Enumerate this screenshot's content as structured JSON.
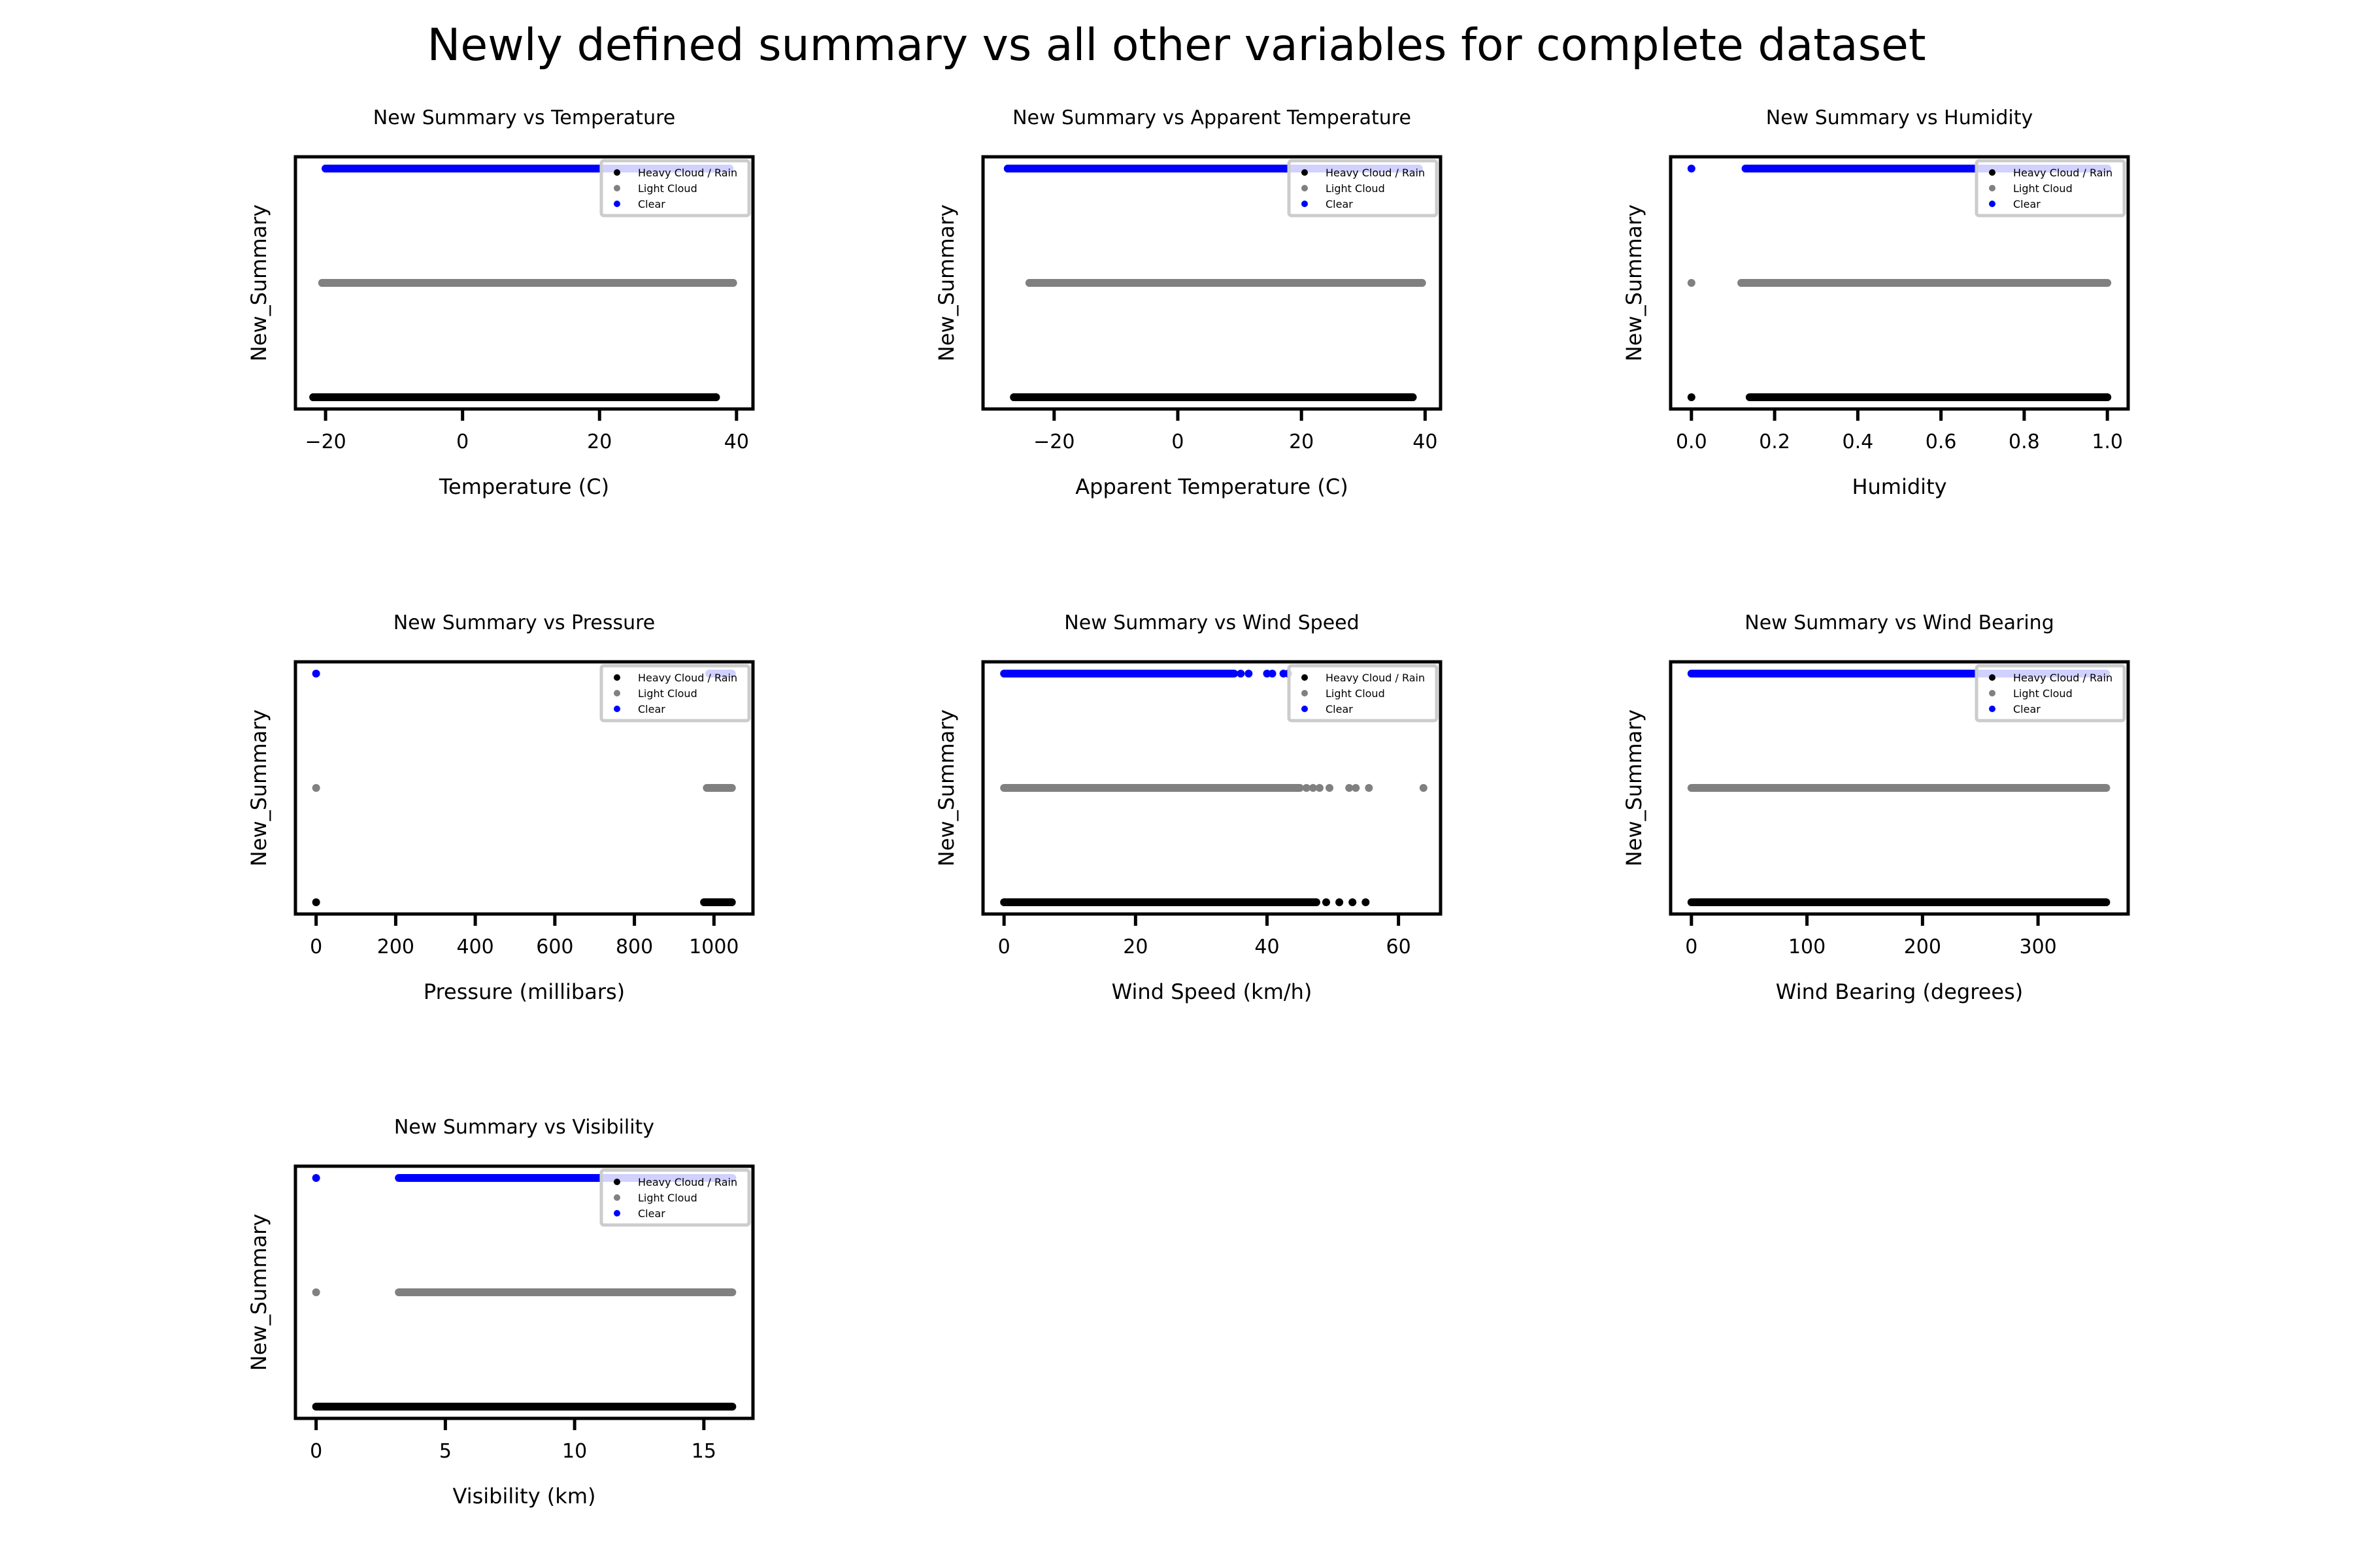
{
  "figure": {
    "title": "Newly defined summary vs all other variables for complete dataset"
  },
  "colors": {
    "heavy": "#000000",
    "light": "#808080",
    "clear": "#0000ff"
  },
  "chart_data": [
    {
      "type": "scatter",
      "title": "New Summary vs Temperature",
      "xlabel": "Temperature (C)",
      "ylabel": "New_Summary",
      "xlim": [
        -24.4,
        42.4
      ],
      "xticks": [
        -20,
        0,
        20,
        40
      ],
      "xtick_labels": [
        "−20",
        "0",
        "20",
        "40"
      ],
      "legend": {
        "placement": "upper right",
        "entries": [
          "Heavy Cloud / Rain",
          "Light Cloud",
          "Clear"
        ]
      },
      "series": [
        {
          "name": "Heavy Cloud / Rain",
          "level": 0,
          "x_min": -21.8,
          "x_max": 37.0,
          "x_points": [
            -21.8,
            -20.0,
            -18.0,
            34.5,
            35.8,
            37.0
          ]
        },
        {
          "name": "Light Cloud",
          "level": 1,
          "x_min": -20.5,
          "x_max": 39.5,
          "x_points": [
            -20.5,
            -18.0,
            -16.5,
            38.0,
            39.5
          ]
        },
        {
          "name": "Clear",
          "level": 2,
          "x_min": -20.0,
          "x_max": 39.0,
          "x_points": [
            -20.0,
            -17.5,
            -16.5
          ]
        }
      ]
    },
    {
      "type": "scatter",
      "title": "New Summary vs Apparent Temperature",
      "xlabel": "Apparent Temperature (C)",
      "ylabel": "New_Summary",
      "xlim": [
        -31.5,
        42.5
      ],
      "xticks": [
        -20,
        0,
        20,
        40
      ],
      "xtick_labels": [
        "−20",
        "0",
        "20",
        "40"
      ],
      "legend": {
        "placement": "upper right",
        "entries": [
          "Heavy Cloud / Rain",
          "Light Cloud",
          "Clear"
        ]
      },
      "series": [
        {
          "name": "Heavy Cloud / Rain",
          "level": 0,
          "x_min": -26.5,
          "x_max": 38.0,
          "x_points": [
            -26.5,
            -25.0,
            36.5,
            38.0
          ]
        },
        {
          "name": "Light Cloud",
          "level": 1,
          "x_min": -24.0,
          "x_max": 39.5,
          "x_points": [
            -24.0,
            -22.5,
            38.0,
            39.5
          ]
        },
        {
          "name": "Clear",
          "level": 2,
          "x_min": -27.5,
          "x_max": 39.0,
          "x_points": [
            -27.5,
            -24.5,
            -23.5,
            -22.5
          ]
        }
      ]
    },
    {
      "type": "scatter",
      "title": "New Summary vs Humidity",
      "xlabel": "Humidity",
      "ylabel": "New_Summary",
      "xlim": [
        -0.05,
        1.05
      ],
      "xticks": [
        0.0,
        0.2,
        0.4,
        0.6,
        0.8,
        1.0
      ],
      "xtick_labels": [
        "0.0",
        "0.2",
        "0.4",
        "0.6",
        "0.8",
        "1.0"
      ],
      "legend": {
        "placement": "upper right",
        "entries": [
          "Heavy Cloud / Rain",
          "Light Cloud",
          "Clear"
        ]
      },
      "series": [
        {
          "name": "Heavy Cloud / Rain",
          "level": 0,
          "x_min": 0.14,
          "x_max": 1.0,
          "x_points": [
            0.0
          ]
        },
        {
          "name": "Light Cloud",
          "level": 1,
          "x_min": 0.12,
          "x_max": 1.0,
          "x_points": [
            0.0,
            0.12
          ]
        },
        {
          "name": "Clear",
          "level": 2,
          "x_min": 0.13,
          "x_max": 1.0,
          "x_points": [
            0.0
          ]
        }
      ]
    },
    {
      "type": "scatter",
      "title": "New Summary vs Pressure",
      "xlabel": "Pressure (millibars)",
      "ylabel": "New_Summary",
      "xlim": [
        -52,
        1098
      ],
      "xticks": [
        0,
        200,
        400,
        600,
        800,
        1000
      ],
      "xtick_labels": [
        "0",
        "200",
        "400",
        "600",
        "800",
        "1000"
      ],
      "legend": {
        "placement": "upper right",
        "entries": [
          "Heavy Cloud / Rain",
          "Light Cloud",
          "Clear"
        ]
      },
      "series": [
        {
          "name": "Heavy Cloud / Rain",
          "level": 0,
          "x_min": 975,
          "x_max": 1045,
          "x_points": [
            0
          ]
        },
        {
          "name": "Light Cloud",
          "level": 1,
          "x_min": 982,
          "x_max": 1045,
          "x_points": [
            0
          ]
        },
        {
          "name": "Clear",
          "level": 2,
          "x_min": 988,
          "x_max": 1045,
          "x_points": [
            0
          ]
        }
      ]
    },
    {
      "type": "scatter",
      "title": "New Summary vs Wind Speed",
      "xlabel": "Wind Speed (km/h)",
      "ylabel": "New_Summary",
      "xlim": [
        -3.2,
        66.4
      ],
      "xticks": [
        0,
        20,
        40,
        60
      ],
      "xtick_labels": [
        "0",
        "20",
        "40",
        "60"
      ],
      "legend": {
        "placement": "upper right",
        "entries": [
          "Heavy Cloud / Rain",
          "Light Cloud",
          "Clear"
        ]
      },
      "series": [
        {
          "name": "Heavy Cloud / Rain",
          "level": 0,
          "x_min": 0,
          "x_max": 47.5,
          "x_points": [
            49.0,
            51.0,
            53.0,
            55.0
          ]
        },
        {
          "name": "Light Cloud",
          "level": 1,
          "x_min": 0,
          "x_max": 45.0,
          "x_points": [
            46.0,
            47.0,
            48.0,
            49.5,
            52.5,
            53.5,
            55.5,
            63.8
          ]
        },
        {
          "name": "Clear",
          "level": 2,
          "x_min": 0,
          "x_max": 35.0,
          "x_points": [
            36.0,
            37.2,
            40.0,
            40.8,
            42.5,
            43.2
          ]
        }
      ]
    },
    {
      "type": "scatter",
      "title": "New Summary vs Wind Bearing",
      "xlabel": "Wind Bearing (degrees)",
      "ylabel": "New_Summary",
      "xlim": [
        -18,
        378
      ],
      "xticks": [
        0,
        100,
        200,
        300
      ],
      "xtick_labels": [
        "0",
        "100",
        "200",
        "300"
      ],
      "legend": {
        "placement": "upper right",
        "entries": [
          "Heavy Cloud / Rain",
          "Light Cloud",
          "Clear"
        ]
      },
      "series": [
        {
          "name": "Heavy Cloud / Rain",
          "level": 0,
          "x_min": 0,
          "x_max": 359,
          "x_points": []
        },
        {
          "name": "Light Cloud",
          "level": 1,
          "x_min": 0,
          "x_max": 359,
          "x_points": []
        },
        {
          "name": "Clear",
          "level": 2,
          "x_min": 0,
          "x_max": 359,
          "x_points": []
        }
      ]
    },
    {
      "type": "scatter",
      "title": "New Summary vs Visibility",
      "xlabel": "Visibility (km)",
      "ylabel": "New_Summary",
      "xlim": [
        -0.8,
        16.9
      ],
      "xticks": [
        0,
        5,
        10,
        15
      ],
      "xtick_labels": [
        "0",
        "5",
        "10",
        "15"
      ],
      "legend": {
        "placement": "upper right",
        "entries": [
          "Heavy Cloud / Rain",
          "Light Cloud",
          "Clear"
        ]
      },
      "series": [
        {
          "name": "Heavy Cloud / Rain",
          "level": 0,
          "x_min": 0,
          "x_max": 16.1,
          "x_points": []
        },
        {
          "name": "Light Cloud",
          "level": 1,
          "x_min": 3.2,
          "x_max": 16.1,
          "x_points": [
            0
          ]
        },
        {
          "name": "Clear",
          "level": 2,
          "x_min": 3.2,
          "x_max": 16.1,
          "x_points": [
            0
          ]
        }
      ]
    }
  ]
}
